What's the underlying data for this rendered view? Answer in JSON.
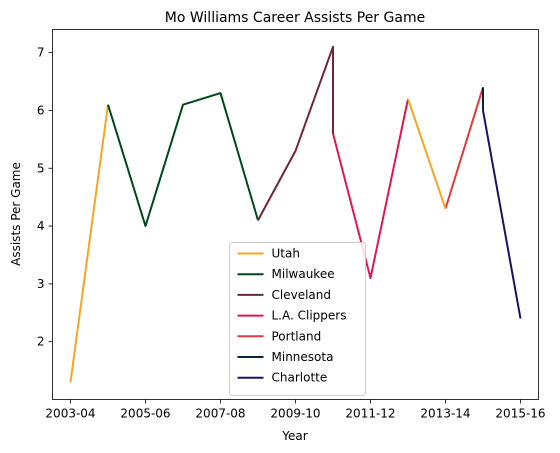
{
  "chart_data": {
    "type": "line",
    "title": "Mo Williams Career Assists Per Game",
    "xlabel": "Year",
    "ylabel": "Assists Per Game",
    "seasons": [
      "2003-04",
      "2004-05",
      "2005-06",
      "2006-07",
      "2007-08",
      "2008-09",
      "2009-10",
      "2010-11",
      "2011-12",
      "2012-13",
      "2013-14",
      "2014-15",
      "2015-16"
    ],
    "xticks": [
      "2003-04",
      "2005-06",
      "2007-08",
      "2009-10",
      "2011-12",
      "2013-14",
      "2015-16"
    ],
    "yticks": [
      2,
      3,
      4,
      5,
      6,
      7
    ],
    "ylim": [
      1.0,
      7.4
    ],
    "legend_position": "lower center",
    "series": [
      {
        "name": "Utah",
        "color": "#f5a623",
        "points": [
          [
            "2003-04",
            1.3
          ],
          [
            "2004-05",
            6.1
          ]
        ]
      },
      {
        "name": "Milwaukee",
        "color": "#00471b",
        "points": [
          [
            "2004-05",
            6.1
          ],
          [
            "2005-06",
            4.0
          ],
          [
            "2006-07",
            6.1
          ],
          [
            "2007-08",
            6.3
          ],
          [
            "2008-09",
            4.1
          ]
        ]
      },
      {
        "name": "Cleveland",
        "color": "#6f263d",
        "points": [
          [
            "2008-09",
            4.1
          ],
          [
            "2009-10",
            5.3
          ],
          [
            "2010-11",
            7.1
          ],
          [
            "2010-11",
            5.6
          ]
        ]
      },
      {
        "name": "L.A. Clippers",
        "color": "#e0174f",
        "points": [
          [
            "2010-11",
            5.6
          ],
          [
            "2011-12",
            3.1
          ],
          [
            "2012-13",
            6.2
          ]
        ]
      },
      {
        "name": "Portland",
        "color": "#e03a3e",
        "points": [
          [
            "2013-14",
            4.3
          ],
          [
            "2014-15",
            6.4
          ]
        ]
      },
      {
        "name": "Minnesota",
        "color": "#0c2340",
        "points": [
          [
            "2014-15",
            6.4
          ],
          [
            "2014-15",
            6.0
          ]
        ]
      },
      {
        "name": "Charlotte",
        "color": "#1d1160",
        "points": [
          [
            "2014-15",
            6.0
          ],
          [
            "2015-16",
            2.4
          ]
        ]
      },
      {
        "name": "",
        "color": "#f5a623",
        "points": [
          [
            "2012-13",
            6.2
          ],
          [
            "2013-14",
            4.3
          ]
        ]
      }
    ]
  }
}
